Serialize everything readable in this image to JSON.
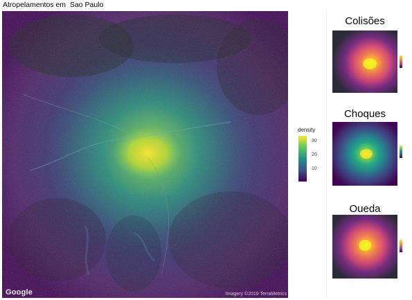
{
  "main": {
    "title": "Atropelamentos em  Sao Paulo",
    "google_logo": "Google",
    "attribution": "Imagery ©2019 TerraMetrics",
    "legend": {
      "title": "density",
      "ticks": [
        "30",
        "20",
        "10"
      ]
    }
  },
  "panels": [
    {
      "title": "Colisões",
      "palette": "plasma"
    },
    {
      "title": "Choques",
      "palette": "viridis"
    },
    {
      "title": "Queda",
      "palette": "plasma"
    }
  ],
  "colors": {
    "density_high": "#fde725",
    "density_mid": "#21918c",
    "density_low": "#440154",
    "plasma_high": "#f0f921",
    "plasma_low": "#0d0887"
  }
}
